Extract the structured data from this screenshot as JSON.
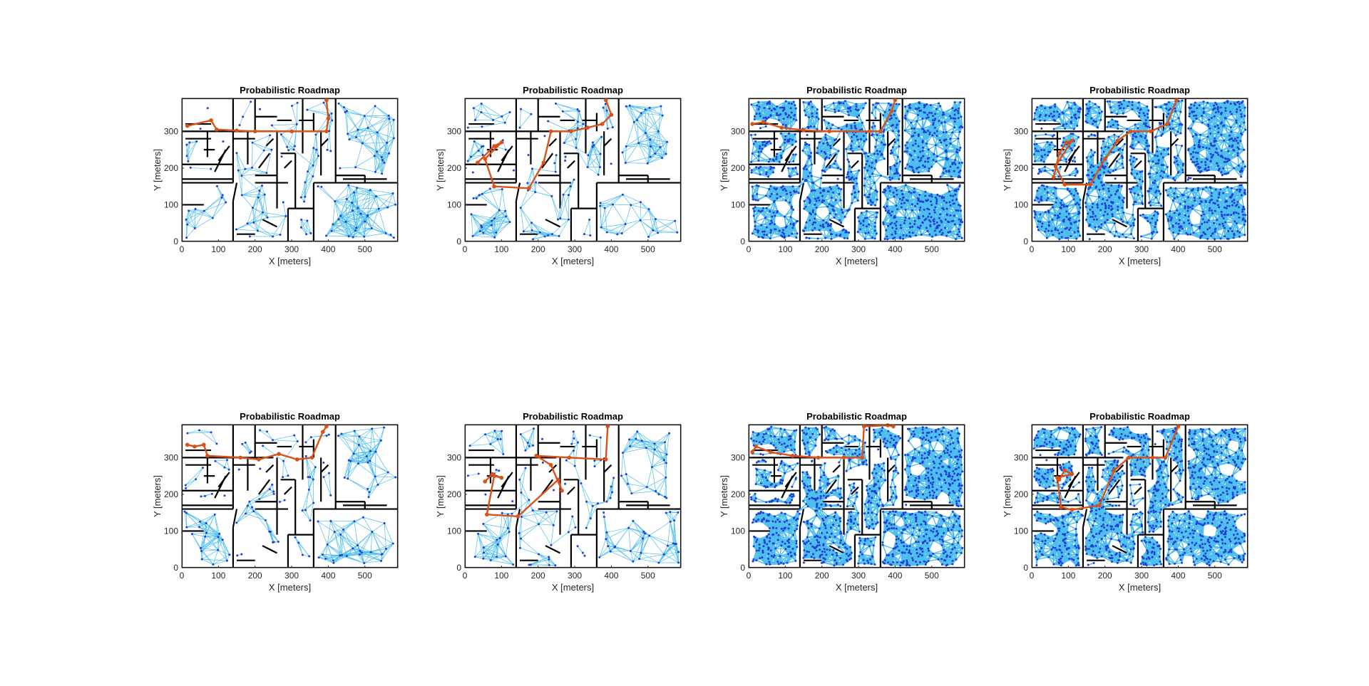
{
  "figure": {
    "layout": "2x4 grid of subplots",
    "colors": {
      "wall": "#000000",
      "edge": "#4dbeee",
      "node": "#1f3fd6",
      "path": "#d95319",
      "axis": "#262626"
    }
  },
  "chart_data": [
    {
      "type": "scatter",
      "title": "Probabilistic Roadmap",
      "xlabel": "X [meters]",
      "ylabel": "Y [meters]",
      "xlim": [
        0,
        590
      ],
      "ylim": [
        0,
        390
      ],
      "xticks": [
        0,
        100,
        200,
        300,
        400,
        500
      ],
      "yticks": [
        0,
        100,
        200,
        300
      ],
      "node_density": "sparse",
      "node_count": 150,
      "connection_distance": 70,
      "seed": 11,
      "path": [
        [
          15,
          315
        ],
        [
          80,
          330
        ],
        [
          95,
          305
        ],
        [
          150,
          302
        ],
        [
          200,
          300
        ],
        [
          300,
          300
        ],
        [
          395,
          300
        ],
        [
          400,
          335
        ],
        [
          395,
          385
        ]
      ]
    },
    {
      "type": "scatter",
      "title": "Probabilistic Roadmap",
      "xlabel": "X [meters]",
      "ylabel": "Y [meters]",
      "xlim": [
        0,
        590
      ],
      "ylim": [
        0,
        390
      ],
      "xticks": [
        0,
        100,
        200,
        300,
        400,
        500
      ],
      "yticks": [
        0,
        100,
        200,
        300
      ],
      "node_density": "sparse",
      "node_count": 150,
      "connection_distance": 70,
      "seed": 23,
      "path": [
        [
          35,
          215
        ],
        [
          80,
          260
        ],
        [
          100,
          270
        ],
        [
          55,
          225
        ],
        [
          80,
          150
        ],
        [
          175,
          145
        ],
        [
          215,
          215
        ],
        [
          235,
          300
        ],
        [
          290,
          300
        ],
        [
          335,
          310
        ],
        [
          375,
          320
        ],
        [
          400,
          345
        ],
        [
          385,
          385
        ]
      ]
    },
    {
      "type": "scatter",
      "title": "Probabilistic Roadmap",
      "xlabel": "X [meters]",
      "ylabel": "Y [meters]",
      "xlim": [
        0,
        590
      ],
      "ylim": [
        0,
        390
      ],
      "xticks": [
        0,
        100,
        200,
        300,
        400,
        500
      ],
      "yticks": [
        0,
        100,
        200,
        300
      ],
      "node_density": "dense",
      "node_count": 1100,
      "connection_distance": 32,
      "seed": 37,
      "path": [
        [
          10,
          320
        ],
        [
          40,
          325
        ],
        [
          90,
          310
        ],
        [
          150,
          303
        ],
        [
          220,
          300
        ],
        [
          330,
          300
        ],
        [
          360,
          300
        ],
        [
          390,
          355
        ],
        [
          400,
          385
        ]
      ]
    },
    {
      "type": "scatter",
      "title": "Probabilistic Roadmap",
      "xlabel": "X [meters]",
      "ylabel": "Y [meters]",
      "xlim": [
        0,
        590
      ],
      "ylim": [
        0,
        390
      ],
      "xticks": [
        0,
        100,
        200,
        300,
        400,
        500
      ],
      "yticks": [
        0,
        100,
        200,
        300
      ],
      "node_density": "dense",
      "node_count": 1100,
      "connection_distance": 32,
      "seed": 41,
      "path": [
        [
          60,
          175
        ],
        [
          75,
          240
        ],
        [
          95,
          270
        ],
        [
          110,
          275
        ],
        [
          65,
          205
        ],
        [
          90,
          155
        ],
        [
          160,
          155
        ],
        [
          200,
          225
        ],
        [
          235,
          275
        ],
        [
          270,
          300
        ],
        [
          325,
          300
        ],
        [
          370,
          320
        ],
        [
          395,
          385
        ]
      ]
    },
    {
      "type": "scatter",
      "title": "Probabilistic Roadmap",
      "xlabel": "X [meters]",
      "ylabel": "Y [meters]",
      "xlim": [
        0,
        590
      ],
      "ylim": [
        0,
        390
      ],
      "xticks": [
        0,
        100,
        200,
        300,
        400,
        500
      ],
      "yticks": [
        0,
        100,
        200,
        300
      ],
      "node_density": "sparse",
      "node_count": 150,
      "connection_distance": 70,
      "seed": 53,
      "path": [
        [
          15,
          335
        ],
        [
          35,
          330
        ],
        [
          60,
          335
        ],
        [
          70,
          305
        ],
        [
          160,
          300
        ],
        [
          210,
          295
        ],
        [
          265,
          310
        ],
        [
          315,
          295
        ],
        [
          355,
          300
        ],
        [
          385,
          370
        ],
        [
          395,
          385
        ]
      ]
    },
    {
      "type": "scatter",
      "title": "Probabilistic Roadmap",
      "xlabel": "X [meters]",
      "ylabel": "Y [meters]",
      "xlim": [
        0,
        590
      ],
      "ylim": [
        0,
        390
      ],
      "xticks": [
        0,
        100,
        200,
        300,
        400,
        500
      ],
      "yticks": [
        0,
        100,
        200,
        300
      ],
      "node_density": "sparse",
      "node_count": 150,
      "connection_distance": 70,
      "seed": 67,
      "path": [
        [
          55,
          235
        ],
        [
          75,
          255
        ],
        [
          100,
          245
        ],
        [
          80,
          250
        ],
        [
          60,
          145
        ],
        [
          145,
          140
        ],
        [
          255,
          240
        ],
        [
          265,
          210
        ],
        [
          235,
          280
        ],
        [
          195,
          305
        ],
        [
          285,
          300
        ],
        [
          385,
          295
        ],
        [
          390,
          385
        ]
      ]
    },
    {
      "type": "scatter",
      "title": "Probabilistic Roadmap",
      "xlabel": "X [meters]",
      "ylabel": "Y [meters]",
      "xlim": [
        0,
        590
      ],
      "ylim": [
        0,
        390
      ],
      "xticks": [
        0,
        100,
        200,
        300,
        400,
        500
      ],
      "yticks": [
        0,
        100,
        200,
        300
      ],
      "node_density": "dense",
      "node_count": 1100,
      "connection_distance": 32,
      "seed": 79,
      "path": [
        [
          10,
          315
        ],
        [
          20,
          330
        ],
        [
          60,
          315
        ],
        [
          120,
          305
        ],
        [
          190,
          300
        ],
        [
          260,
          300
        ],
        [
          310,
          300
        ],
        [
          315,
          385
        ],
        [
          380,
          388
        ],
        [
          395,
          385
        ]
      ]
    },
    {
      "type": "scatter",
      "title": "Probabilistic Roadmap",
      "xlabel": "X [meters]",
      "ylabel": "Y [meters]",
      "xlim": [
        0,
        590
      ],
      "ylim": [
        0,
        390
      ],
      "xticks": [
        0,
        100,
        200,
        300,
        400,
        500
      ],
      "yticks": [
        0,
        100,
        200,
        300
      ],
      "node_density": "dense",
      "node_count": 1100,
      "connection_distance": 32,
      "seed": 83,
      "path": [
        [
          75,
          240
        ],
        [
          90,
          265
        ],
        [
          110,
          255
        ],
        [
          70,
          245
        ],
        [
          80,
          165
        ],
        [
          110,
          158
        ],
        [
          185,
          170
        ],
        [
          225,
          265
        ],
        [
          265,
          300
        ],
        [
          330,
          300
        ],
        [
          365,
          300
        ],
        [
          400,
          385
        ]
      ]
    }
  ]
}
